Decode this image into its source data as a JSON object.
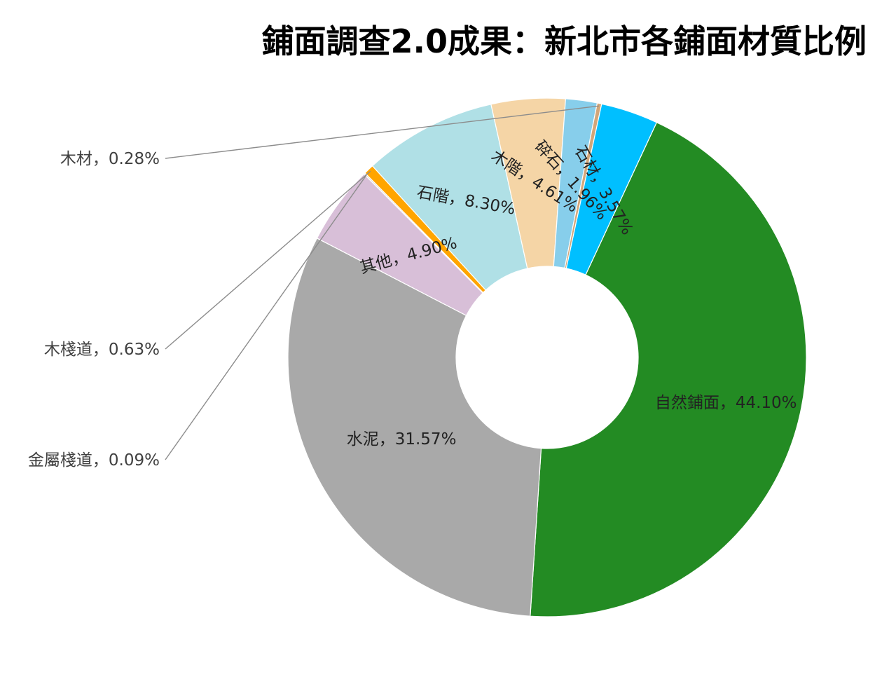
{
  "chart_data": {
    "type": "pie",
    "variant": "donut",
    "title": "鋪面調查2.0成果：新北市各鋪面材質比例",
    "slices": [
      {
        "name": "自然鋪面",
        "label": "自然鋪面，44.10%",
        "value": 44.1,
        "color": "#238b23",
        "label_style": "inside"
      },
      {
        "name": "水泥",
        "label": "水泥，31.57%",
        "value": 31.57,
        "color": "#a9a9a9",
        "label_style": "inside"
      },
      {
        "name": "其他",
        "label": "其他，4.90%",
        "value": 4.9,
        "color": "#d8bfd8",
        "label_style": "inside-rotated"
      },
      {
        "name": "金屬棧道",
        "label": "金屬棧道，0.09%",
        "value": 0.09,
        "color": "#d4d4d4",
        "label_style": "outside"
      },
      {
        "name": "木棧道",
        "label": "木棧道，0.63%",
        "value": 0.63,
        "color": "#ffa500",
        "label_style": "outside"
      },
      {
        "name": "石階",
        "label": "石階，8.30%",
        "value": 8.3,
        "color": "#b0e0e6",
        "label_style": "inside-rotated"
      },
      {
        "name": "木階",
        "label": "木階，4.61%",
        "value": 4.61,
        "color": "#f5d5a6",
        "label_style": "inside-rotated"
      },
      {
        "name": "碎石",
        "label": "碎石，1.96%",
        "value": 1.96,
        "color": "#87ceeb",
        "label_style": "inside-rotated"
      },
      {
        "name": "木材",
        "label": "木材，0.28%",
        "value": 0.28,
        "color": "#d2a679",
        "label_style": "outside"
      },
      {
        "name": "石材",
        "label": "石材，3.57%",
        "value": 3.57,
        "color": "#00bfff",
        "label_style": "inside-rotated"
      }
    ],
    "start_angle_deg": 25,
    "direction": "clockwise",
    "legend": "none"
  }
}
